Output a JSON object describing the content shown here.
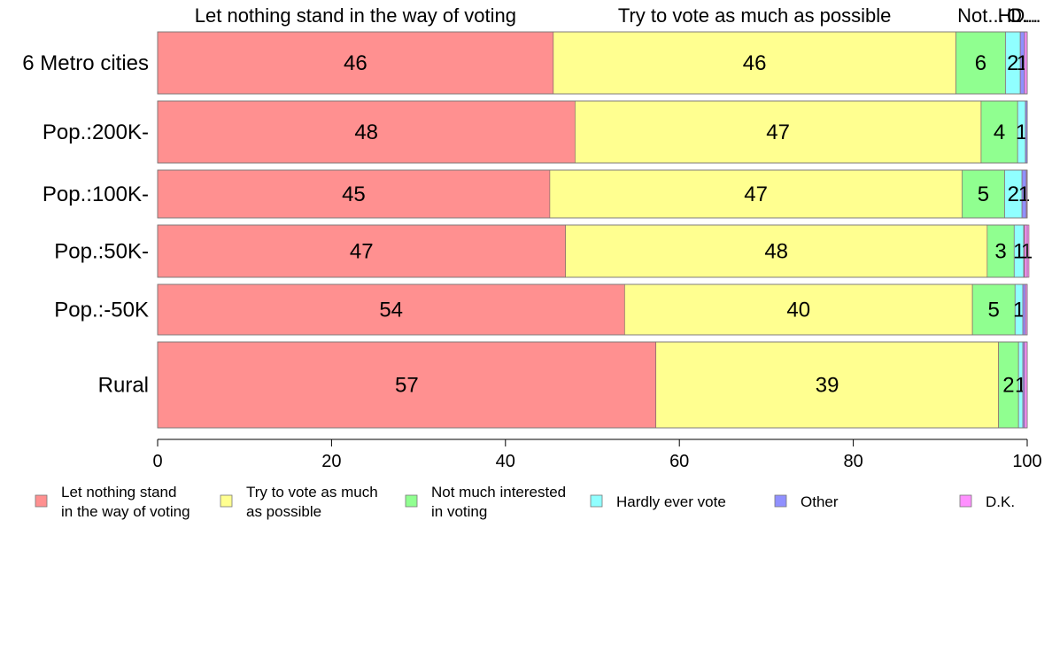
{
  "chart_data": {
    "type": "bar",
    "orientation": "horizontal",
    "stacked": true,
    "categories": [
      "6 Metro cities",
      "Pop.:200K-",
      "Pop.:100K-",
      "Pop.:50K-",
      "Pop.:-50K",
      "Rural"
    ],
    "series": [
      {
        "name": "Let nothing stand in the way of voting",
        "color": "#ff9090",
        "values": [
          45.5,
          48.0,
          45.1,
          46.9,
          53.7,
          57.3
        ],
        "labels": [
          "46",
          "48",
          "45",
          "47",
          "54",
          "57"
        ]
      },
      {
        "name": "Try to vote as much as possible",
        "color": "#ffff90",
        "values": [
          46.3,
          46.7,
          47.4,
          48.5,
          40.0,
          39.4
        ],
        "labels": [
          "46",
          "47",
          "47",
          "48",
          "40",
          "39"
        ]
      },
      {
        "name": "Not much interested in voting",
        "color": "#90ff90",
        "values": [
          5.7,
          4.2,
          4.9,
          3.1,
          4.9,
          2.3
        ],
        "labels": [
          "6",
          "4",
          "5",
          "3",
          "5",
          "2"
        ]
      },
      {
        "name": "Hardly ever vote",
        "color": "#90ffff",
        "values": [
          1.7,
          0.9,
          2.0,
          1.1,
          0.9,
          0.5
        ],
        "labels": [
          "2",
          "1",
          "2",
          "1",
          "1",
          "1"
        ]
      },
      {
        "name": "Other",
        "color": "#9090ff",
        "values": [
          0.5,
          0.2,
          0.5,
          0.1,
          0.3,
          0.2
        ],
        "labels": [
          "1",
          "",
          "1",
          "",
          "",
          ""
        ]
      },
      {
        "name": "D.K.",
        "color": "#ff90ff",
        "values": [
          0.3,
          0.0,
          0.1,
          0.5,
          0.2,
          0.3
        ],
        "labels": [
          "",
          "",
          "",
          "1",
          "",
          ""
        ]
      }
    ],
    "top_labels": [
      "Let nothing stand in the way of voting",
      "Try to vote as much as possible",
      "Not...",
      "H...",
      "O...",
      "D..."
    ],
    "xlim": [
      0,
      100
    ],
    "xticks": [
      0,
      20,
      40,
      60,
      80,
      100
    ],
    "legend": {
      "placement": "bottom",
      "entries": [
        {
          "line1": "Let nothing stand",
          "line2": "in the way of voting",
          "color": "#ff9090"
        },
        {
          "line1": "Try to vote as much",
          "line2": "as possible",
          "color": "#ffff90"
        },
        {
          "line1": "Not much interested",
          "line2": "in voting",
          "color": "#90ff90"
        },
        {
          "line1": "Hardly ever vote",
          "line2": "",
          "color": "#90ffff"
        },
        {
          "line1": "Other",
          "line2": "",
          "color": "#9090ff"
        },
        {
          "line1": "D.K.",
          "line2": "",
          "color": "#ff90ff"
        }
      ]
    }
  }
}
